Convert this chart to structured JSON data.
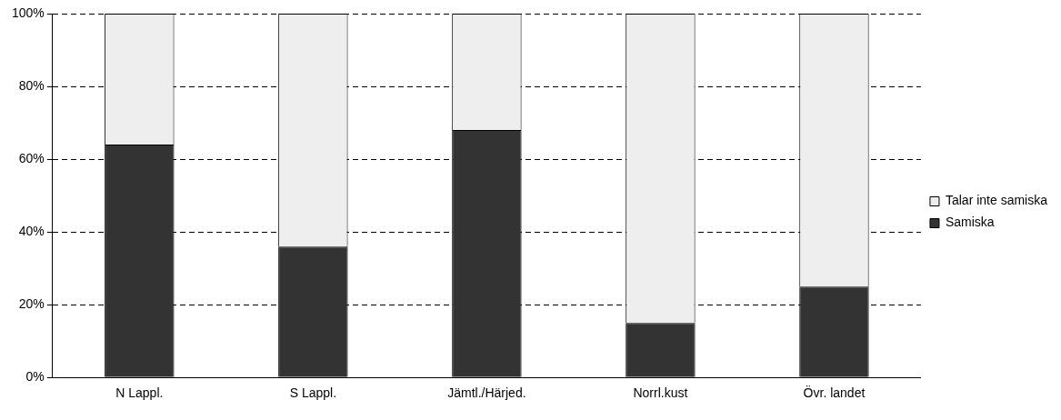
{
  "chart_data": {
    "type": "bar",
    "stacked": true,
    "categories": [
      "N Lappl.",
      "S Lappl.",
      "Jämtl./Härjed.",
      "Norrl.kust",
      "Övr. landet"
    ],
    "series": [
      {
        "name": "Samiska",
        "color": "#333333",
        "values": [
          64,
          36,
          68,
          15,
          25
        ]
      },
      {
        "name": "Talar inte samiska",
        "color": "#eeeeee",
        "values": [
          36,
          64,
          32,
          85,
          75
        ]
      }
    ],
    "ylim": [
      0,
      100
    ],
    "yticks": [
      {
        "value": 0,
        "label": "0%"
      },
      {
        "value": 20,
        "label": "20%"
      },
      {
        "value": 40,
        "label": "40%"
      },
      {
        "value": 60,
        "label": "60%"
      },
      {
        "value": 80,
        "label": "80%"
      },
      {
        "value": 100,
        "label": "100%"
      }
    ],
    "grid": "y",
    "legend": "right",
    "line_style": "dashed"
  }
}
